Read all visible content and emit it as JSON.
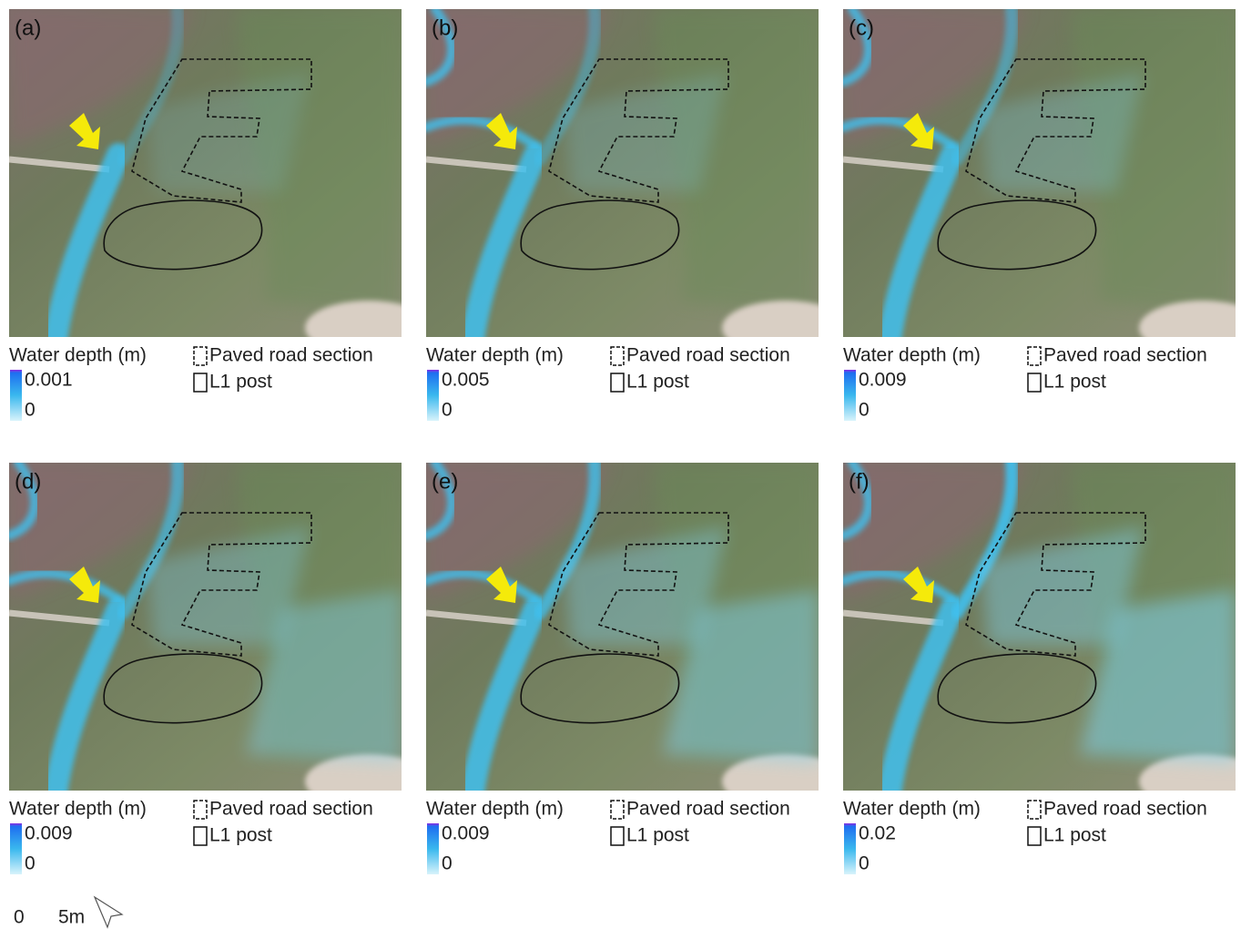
{
  "panels": [
    {
      "label": "(a)",
      "legend_title": "Water depth (m)",
      "max_label": "0.001",
      "min_label": "0",
      "road_label": "Paved road section",
      "post_label": "L1 post"
    },
    {
      "label": "(b)",
      "legend_title": "Water depth (m)",
      "max_label": "0.005",
      "min_label": "0",
      "road_label": "Paved road section",
      "post_label": "L1 post"
    },
    {
      "label": "(c)",
      "legend_title": "Water depth (m)",
      "max_label": "0.009",
      "min_label": "0",
      "road_label": "Paved road section",
      "post_label": "L1 post"
    },
    {
      "label": "(d)",
      "legend_title": "Water depth (m)",
      "max_label": "0.009",
      "min_label": "0",
      "road_label": "Paved road section",
      "post_label": "L1 post"
    },
    {
      "label": "(e)",
      "legend_title": "Water depth (m)",
      "max_label": "0.009",
      "min_label": "0",
      "road_label": "Paved road section",
      "post_label": "L1 post"
    },
    {
      "label": "(f)",
      "legend_title": "Water depth (m)",
      "max_label": "0.02",
      "min_label": "0",
      "road_label": "Paved road section",
      "post_label": "L1 post"
    }
  ],
  "scale_bar": {
    "start": "0",
    "end": "5m"
  }
}
